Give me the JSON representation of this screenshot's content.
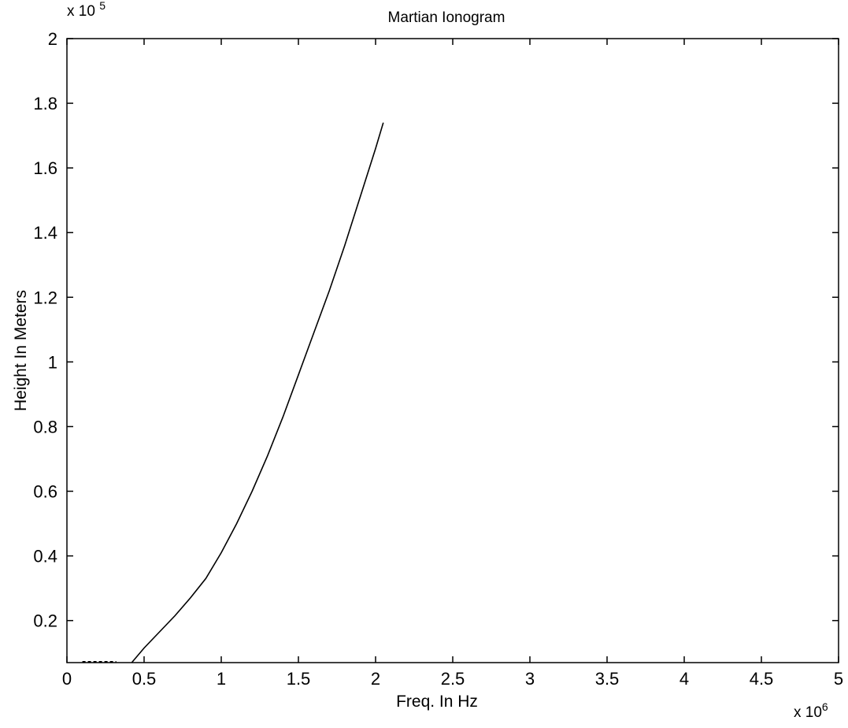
{
  "chart_data": {
    "type": "line",
    "title": "Martian Ionogram",
    "xlabel": "Freq. In Hz",
    "ylabel": "Height In Meters",
    "x_multiplier_label": {
      "base": "x 10",
      "exp": "6"
    },
    "y_multiplier_label": {
      "base": "x 10",
      "exp": "5"
    },
    "xlim": [
      0,
      5
    ],
    "ylim": [
      0.07,
      2
    ],
    "xticks": [
      0,
      0.5,
      1,
      1.5,
      2,
      2.5,
      3,
      3.5,
      4,
      4.5,
      5
    ],
    "xtick_labels": [
      "0",
      "0.5",
      "1",
      "1.5",
      "2",
      "2.5",
      "3",
      "3.5",
      "4",
      "4.5",
      "5"
    ],
    "yticks": [
      0.2,
      0.4,
      0.6,
      0.8,
      1.0,
      1.2,
      1.4,
      1.6,
      1.8,
      2.0
    ],
    "ytick_labels": [
      "0.2",
      "0.4",
      "0.6",
      "0.8",
      "1",
      "1.2",
      "1.4",
      "1.6",
      "1.8",
      "2"
    ],
    "grid": false,
    "legend": false,
    "line_color": "#000000",
    "series": [
      {
        "x": [
          0.42,
          0.5,
          0.6,
          0.7,
          0.8,
          0.9,
          1.0,
          1.1,
          1.2,
          1.3,
          1.4,
          1.5,
          1.6,
          1.7,
          1.8,
          1.9,
          2.0,
          2.05
        ],
        "y": [
          0.07,
          0.115,
          0.165,
          0.215,
          0.27,
          0.33,
          0.41,
          0.5,
          0.6,
          0.71,
          0.83,
          0.96,
          1.09,
          1.22,
          1.36,
          1.51,
          1.66,
          1.74
        ]
      },
      {
        "x": [
          0.1,
          0.32
        ],
        "y": [
          0.073,
          0.073
        ],
        "style": "dashed"
      }
    ]
  }
}
